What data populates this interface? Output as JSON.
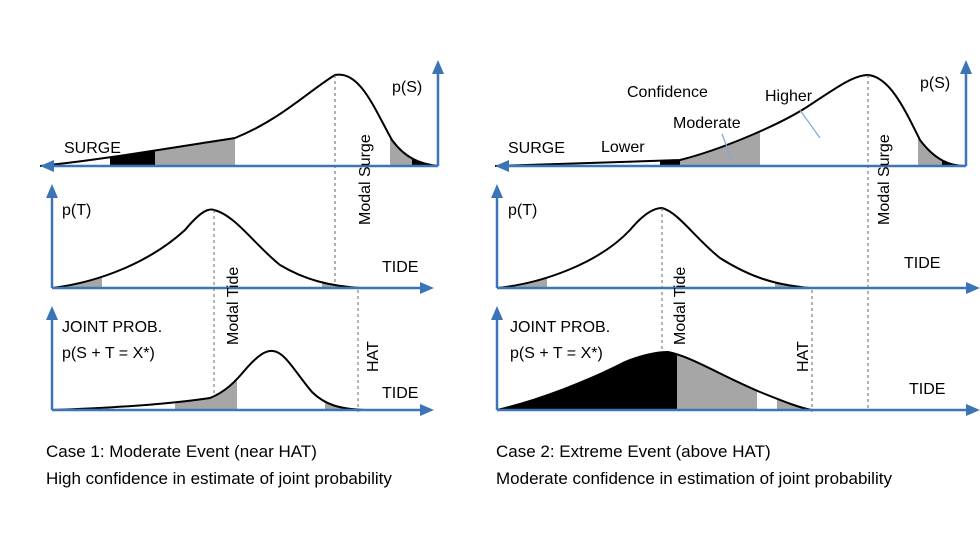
{
  "panel1": {
    "surge_axis": "SURGE",
    "surge_prob": "p(S)",
    "modal_surge": "Modal Surge",
    "tide_prob": "p(T)",
    "tide_axis": "TIDE",
    "modal_tide": "Modal Tide",
    "joint_title": "JOINT PROB.",
    "joint_formula": "p(S + T = X*)",
    "hat": "HAT",
    "joint_axis": "TIDE",
    "caption_line1": "Case 1: Moderate Event (near HAT)",
    "caption_line2": "High confidence in estimate of joint probability"
  },
  "panel2": {
    "surge_axis": "SURGE",
    "surge_prob": "p(S)",
    "modal_surge": "Modal Surge",
    "confidence_title": "Confidence",
    "higher": "Higher",
    "moderate": "Moderate",
    "lower": "Lower",
    "tide_prob": "p(T)",
    "tide_axis": "TIDE",
    "modal_tide": "Modal Tide",
    "joint_title": "JOINT PROB.",
    "joint_formula": "p(S + T = X*)",
    "hat": "HAT",
    "joint_axis": "TIDE",
    "caption_line1": "Case 2: Extreme Event (above HAT)",
    "caption_line2": "Moderate confidence in estimation of joint probability"
  },
  "colors": {
    "axis": "#3c74b8",
    "shade_grey": "#a6a6a6",
    "shade_black": "#000000"
  }
}
